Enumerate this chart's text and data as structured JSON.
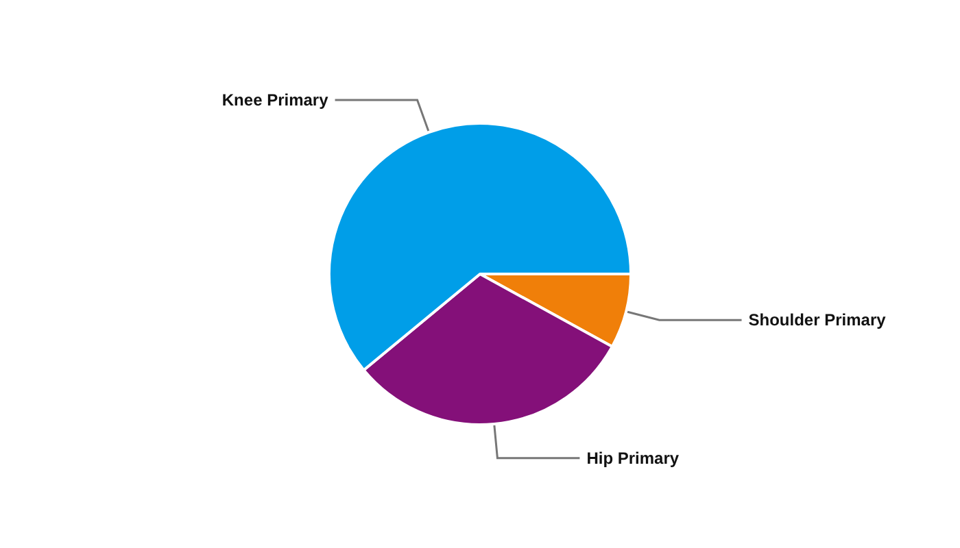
{
  "chart_data": {
    "type": "pie",
    "categories": [
      "Shoulder Primary",
      "Hip Primary",
      "Knee Primary"
    ],
    "values": [
      8,
      31,
      61
    ],
    "colors": [
      "#f07f09",
      "#841079",
      "#009ee8"
    ],
    "legend": false
  }
}
